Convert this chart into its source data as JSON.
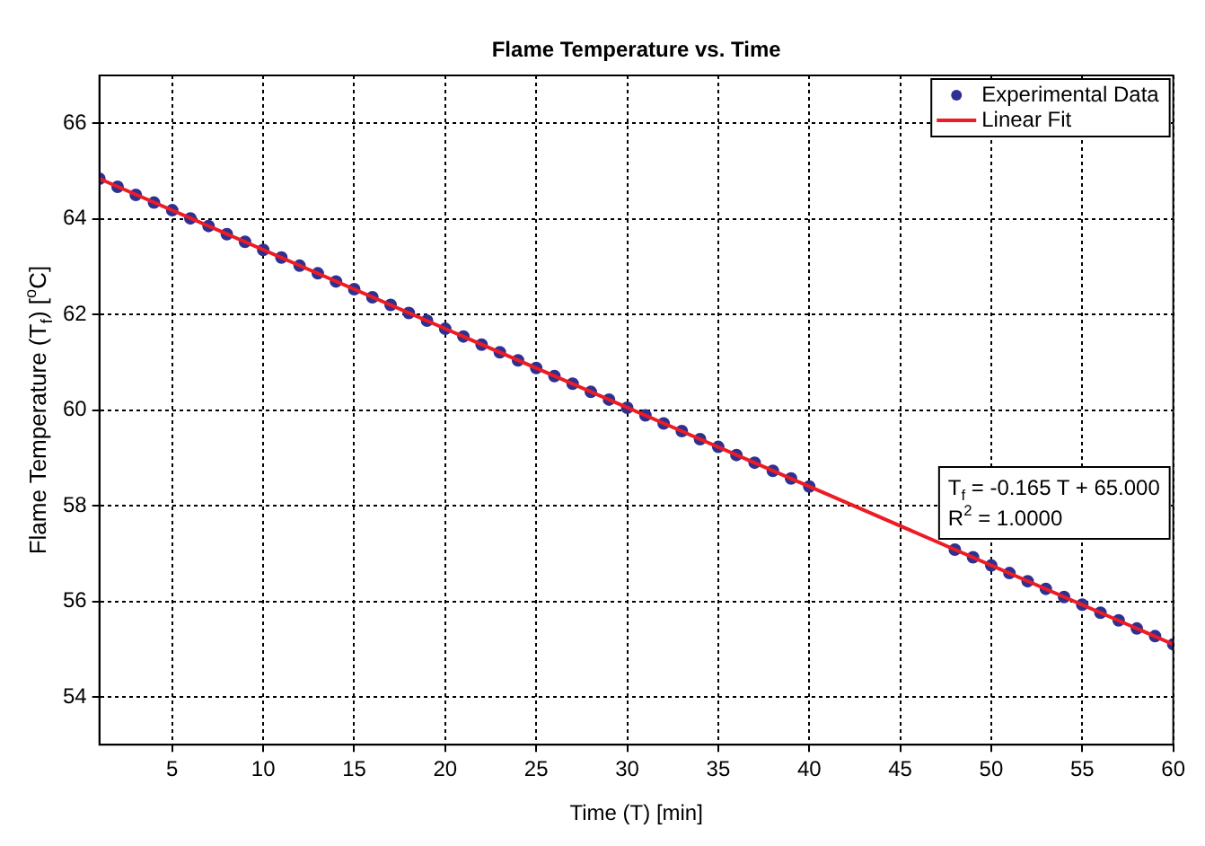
{
  "chart_data": {
    "type": "scatter",
    "title": "Flame Temperature vs. Time",
    "xlabel": "Time (T) [min]",
    "ylabel": "Flame Temperature (T$_{f}$) [$^{o}$C]",
    "x": [
      1,
      2,
      3,
      4,
      5,
      6,
      7,
      8,
      9,
      10,
      11,
      12,
      13,
      14,
      15,
      16,
      17,
      18,
      19,
      20,
      21,
      22,
      23,
      24,
      25,
      26,
      27,
      28,
      29,
      30,
      31,
      32,
      33,
      34,
      35,
      36,
      37,
      38,
      39,
      40,
      41,
      42,
      43,
      44,
      45,
      46,
      47,
      48,
      49,
      50,
      51,
      52,
      53,
      54,
      55,
      56,
      57,
      58,
      59,
      60
    ],
    "series": [
      {
        "name": "Experimental Data",
        "color": "#2e3192",
        "marker": "circle",
        "values": [
          64.84,
          64.67,
          64.5,
          64.34,
          64.18,
          64.01,
          63.85,
          63.68,
          63.52,
          63.35,
          63.19,
          63.02,
          62.86,
          62.69,
          62.53,
          62.36,
          62.2,
          62.03,
          61.87,
          61.7,
          61.54,
          61.37,
          61.21,
          61.04,
          60.88,
          60.71,
          60.55,
          60.38,
          60.22,
          60.05,
          59.89,
          59.72,
          59.56,
          59.39,
          59.23,
          59.06,
          58.9,
          58.73,
          58.57,
          58.4,
          null,
          null,
          null,
          null,
          null,
          null,
          null,
          57.08,
          56.92,
          56.75,
          56.59,
          56.42,
          56.26,
          56.09,
          55.93,
          55.76,
          55.6,
          55.43,
          55.27,
          55.1
        ]
      },
      {
        "name": "Linear Fit",
        "type": "line",
        "color": "#ed1c24",
        "line_style": "solid",
        "marker": "none",
        "x": [
          1,
          60
        ],
        "values": [
          64.84,
          55.1
        ]
      }
    ],
    "xlim": [
      1,
      60
    ],
    "xticks": [
      5,
      10,
      15,
      20,
      25,
      30,
      35,
      40,
      45,
      50,
      55,
      60
    ],
    "ylim": [
      53,
      67
    ],
    "yticks": [
      54,
      56,
      58,
      60,
      62,
      64,
      66
    ],
    "grid": true,
    "legend": "top right",
    "annotations": [
      "T$_{f}$ = -0.165 T + 65.000",
      "R$^{2}$ = 1.0000"
    ]
  }
}
